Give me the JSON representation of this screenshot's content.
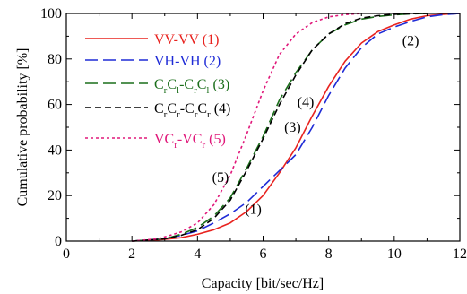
{
  "chart_data": {
    "type": "line",
    "xlabel": "Capacity [bit/sec/Hz]",
    "ylabel": "Cumulative probability [%]",
    "xlim": [
      0,
      12
    ],
    "ylim": [
      0,
      100
    ],
    "x_ticks": [
      "0",
      "2",
      "4",
      "6",
      "8",
      "10",
      "12"
    ],
    "y_ticks": [
      "0",
      "20",
      "40",
      "60",
      "80",
      "100"
    ],
    "grid": false,
    "legend_placement": "top-left",
    "series": [
      {
        "legend": {
          "main": "VV-VV (1)"
        },
        "color": "#e8231f",
        "dash": "solid",
        "x": [
          2.0,
          2.8,
          3.5,
          4.0,
          4.5,
          5.0,
          5.5,
          6.0,
          6.5,
          7.0,
          7.5,
          8.0,
          8.5,
          9.0,
          9.5,
          10.0,
          10.5,
          11.0,
          11.5,
          12.0
        ],
        "y": [
          0,
          0.5,
          1.5,
          3,
          5,
          8,
          13,
          20,
          30,
          41,
          55,
          68,
          79,
          87,
          92,
          95,
          97.5,
          99,
          99.6,
          100
        ]
      },
      {
        "legend": {
          "main": "VH-VH (2)"
        },
        "color": "#1f2bd6",
        "dash": "long-dash",
        "x": [
          2.0,
          3.0,
          3.5,
          4.0,
          4.5,
          5.0,
          5.5,
          6.0,
          6.5,
          7.0,
          7.5,
          8.0,
          8.5,
          9.0,
          9.5,
          10.0,
          10.5,
          11.0,
          11.5,
          12.0
        ],
        "y": [
          0,
          1,
          2.5,
          4.5,
          8,
          12,
          17,
          24,
          31,
          38,
          50,
          64,
          76,
          85,
          91,
          94,
          96.5,
          98.5,
          99.5,
          100
        ]
      },
      {
        "legend": {
          "pre": "C",
          "parts": [
            [
              "r",
              "C"
            ],
            [
              "l",
              "-C"
            ],
            [
              "r",
              "C"
            ],
            [
              "l",
              " (3)"
            ]
          ]
        },
        "color": "#1a6e1a",
        "dash": "long-dash",
        "x": [
          2.0,
          3.0,
          3.5,
          4.0,
          4.5,
          5.0,
          5.5,
          6.0,
          6.5,
          7.0,
          7.5,
          8.0,
          8.5,
          9.0,
          9.5,
          10.0,
          10.5,
          11.0
        ],
        "y": [
          0,
          1,
          3,
          6,
          11,
          19,
          32,
          46,
          62,
          74,
          84,
          91,
          95,
          97.5,
          98.7,
          99.4,
          99.8,
          100
        ]
      },
      {
        "legend": {
          "pre": "C",
          "parts": [
            [
              "r",
              "C"
            ],
            [
              "r",
              "-C"
            ],
            [
              "r",
              "C"
            ],
            [
              "r",
              " (4)"
            ]
          ]
        },
        "color": "#000000",
        "dash": "dash",
        "x": [
          2.0,
          3.0,
          3.5,
          4.0,
          4.5,
          5.0,
          5.5,
          6.0,
          6.5,
          7.0,
          7.5,
          8.0,
          8.5,
          9.0,
          9.5,
          10.0,
          10.5,
          11.0
        ],
        "y": [
          0,
          1,
          2.5,
          5,
          10,
          18,
          31,
          45,
          60,
          73,
          84,
          91,
          95.5,
          98,
          99,
          99.6,
          99.9,
          100
        ]
      },
      {
        "legend": {
          "pre": "VC",
          "parts": [
            [
              "r",
              "-VC"
            ],
            [
              "r",
              " (5)"
            ]
          ]
        },
        "color": "#e0187a",
        "dash": "dot",
        "x": [
          2.0,
          2.8,
          3.5,
          4.0,
          4.5,
          5.0,
          5.5,
          6.0,
          6.5,
          7.0,
          7.5,
          8.0,
          8.5,
          9.0
        ],
        "y": [
          0,
          1,
          4,
          8,
          16,
          29,
          47,
          66,
          82,
          91,
          96,
          98.5,
          99.5,
          100
        ]
      }
    ],
    "annotations": [
      {
        "text": "(2)",
        "x": 10.5,
        "y": 86
      },
      {
        "text": "(4)",
        "x": 7.3,
        "y": 59
      },
      {
        "text": "(3)",
        "x": 6.9,
        "y": 48
      },
      {
        "text": "(5)",
        "x": 4.7,
        "y": 26
      },
      {
        "text": "(1)",
        "x": 5.7,
        "y": 12
      }
    ]
  }
}
